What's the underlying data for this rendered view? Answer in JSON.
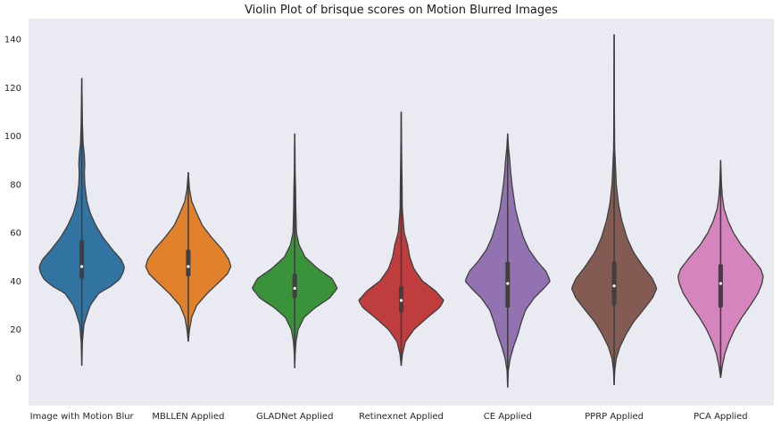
{
  "chart_data": {
    "type": "violin",
    "title": "Violin Plot of brisque scores on Motion Blurred Images",
    "xlabel": "",
    "ylabel": "",
    "ylim": [
      -11.5,
      148.5
    ],
    "yticks": [
      0,
      20,
      40,
      60,
      80,
      100,
      120,
      140
    ],
    "grid": false,
    "background": "#eaeaf2",
    "categories": [
      "Image with Motion Blur",
      "MBLLEN Applied",
      "GLADNet Applied",
      "Retinexnet Applied",
      "CE Applied",
      "PPRP Applied",
      "PCA Applied"
    ],
    "violins": [
      {
        "color": "#3274a1",
        "min": 5,
        "max": 124,
        "q1": 41,
        "median": 46,
        "q3": 57,
        "density": [
          [
            5,
            0
          ],
          [
            15,
            0.015
          ],
          [
            22,
            0.05
          ],
          [
            26,
            0.12
          ],
          [
            30,
            0.2
          ],
          [
            35,
            0.4
          ],
          [
            38,
            0.7
          ],
          [
            41,
            0.9
          ],
          [
            44,
            0.98
          ],
          [
            46,
            1.0
          ],
          [
            49,
            0.92
          ],
          [
            53,
            0.72
          ],
          [
            58,
            0.5
          ],
          [
            63,
            0.33
          ],
          [
            68,
            0.2
          ],
          [
            73,
            0.12
          ],
          [
            80,
            0.07
          ],
          [
            85,
            0.06
          ],
          [
            88,
            0.07
          ],
          [
            92,
            0.06
          ],
          [
            97,
            0.03
          ],
          [
            105,
            0.015
          ],
          [
            115,
            0.008
          ],
          [
            124,
            0
          ]
        ]
      },
      {
        "color": "#e1812c",
        "min": 15,
        "max": 85,
        "q1": 42,
        "median": 46,
        "q3": 53,
        "density": [
          [
            15,
            0
          ],
          [
            20,
            0.03
          ],
          [
            25,
            0.08
          ],
          [
            30,
            0.2
          ],
          [
            35,
            0.45
          ],
          [
            40,
            0.75
          ],
          [
            43,
            0.92
          ],
          [
            46,
            1.0
          ],
          [
            49,
            0.95
          ],
          [
            53,
            0.8
          ],
          [
            58,
            0.55
          ],
          [
            63,
            0.33
          ],
          [
            68,
            0.2
          ],
          [
            73,
            0.08
          ],
          [
            78,
            0.03
          ],
          [
            85,
            0
          ]
        ]
      },
      {
        "color": "#3a923a",
        "min": 4,
        "max": 101,
        "q1": 33,
        "median": 37,
        "q3": 43,
        "density": [
          [
            4,
            0
          ],
          [
            10,
            0.01
          ],
          [
            15,
            0.03
          ],
          [
            20,
            0.08
          ],
          [
            25,
            0.22
          ],
          [
            29,
            0.48
          ],
          [
            33,
            0.82
          ],
          [
            37,
            1.0
          ],
          [
            41,
            0.88
          ],
          [
            45,
            0.55
          ],
          [
            50,
            0.24
          ],
          [
            55,
            0.1
          ],
          [
            60,
            0.04
          ],
          [
            70,
            0.025
          ],
          [
            78,
            0.02
          ],
          [
            85,
            0.01
          ],
          [
            95,
            0.005
          ],
          [
            101,
            0
          ]
        ]
      },
      {
        "color": "#c03d3e",
        "min": 5,
        "max": 110,
        "q1": 27,
        "median": 32,
        "q3": 38,
        "density": [
          [
            5,
            0
          ],
          [
            10,
            0.03
          ],
          [
            15,
            0.1
          ],
          [
            20,
            0.3
          ],
          [
            25,
            0.62
          ],
          [
            29,
            0.9
          ],
          [
            32,
            1.0
          ],
          [
            36,
            0.8
          ],
          [
            40,
            0.5
          ],
          [
            45,
            0.3
          ],
          [
            50,
            0.2
          ],
          [
            55,
            0.15
          ],
          [
            60,
            0.07
          ],
          [
            70,
            0.025
          ],
          [
            80,
            0.02
          ],
          [
            90,
            0.012
          ],
          [
            100,
            0.006
          ],
          [
            110,
            0
          ]
        ]
      },
      {
        "color": "#9372b2",
        "min": -4,
        "max": 101,
        "q1": 29,
        "median": 39,
        "q3": 48,
        "density": [
          [
            -4,
            0
          ],
          [
            3,
            0.015
          ],
          [
            8,
            0.06
          ],
          [
            13,
            0.14
          ],
          [
            18,
            0.24
          ],
          [
            23,
            0.32
          ],
          [
            28,
            0.42
          ],
          [
            33,
            0.62
          ],
          [
            37,
            0.85
          ],
          [
            40,
            1.0
          ],
          [
            44,
            0.9
          ],
          [
            48,
            0.7
          ],
          [
            53,
            0.5
          ],
          [
            58,
            0.37
          ],
          [
            65,
            0.25
          ],
          [
            70,
            0.18
          ],
          [
            75,
            0.14
          ],
          [
            80,
            0.1
          ],
          [
            85,
            0.07
          ],
          [
            90,
            0.05
          ],
          [
            95,
            0.02
          ],
          [
            101,
            0
          ]
        ]
      },
      {
        "color": "#845b53",
        "min": -3,
        "max": 142,
        "q1": 30,
        "median": 38,
        "q3": 48,
        "density": [
          [
            -3,
            0
          ],
          [
            3,
            0.015
          ],
          [
            8,
            0.05
          ],
          [
            13,
            0.14
          ],
          [
            18,
            0.28
          ],
          [
            23,
            0.45
          ],
          [
            28,
            0.68
          ],
          [
            33,
            0.9
          ],
          [
            37,
            1.0
          ],
          [
            41,
            0.9
          ],
          [
            46,
            0.68
          ],
          [
            52,
            0.45
          ],
          [
            58,
            0.3
          ],
          [
            65,
            0.18
          ],
          [
            72,
            0.1
          ],
          [
            80,
            0.05
          ],
          [
            88,
            0.03
          ],
          [
            95,
            0.012
          ],
          [
            105,
            0.008
          ],
          [
            115,
            0.005
          ],
          [
            130,
            0.003
          ],
          [
            142,
            0
          ]
        ]
      },
      {
        "color": "#d684bd",
        "min": 0,
        "max": 90,
        "q1": 29,
        "median": 39,
        "q3": 47,
        "density": [
          [
            0,
            0
          ],
          [
            5,
            0.04
          ],
          [
            10,
            0.1
          ],
          [
            15,
            0.2
          ],
          [
            20,
            0.33
          ],
          [
            25,
            0.5
          ],
          [
            30,
            0.7
          ],
          [
            35,
            0.88
          ],
          [
            39,
            0.97
          ],
          [
            42,
            1.0
          ],
          [
            45,
            0.94
          ],
          [
            50,
            0.72
          ],
          [
            55,
            0.48
          ],
          [
            60,
            0.3
          ],
          [
            65,
            0.17
          ],
          [
            70,
            0.08
          ],
          [
            75,
            0.04
          ],
          [
            80,
            0.02
          ],
          [
            85,
            0.01
          ],
          [
            90,
            0
          ]
        ]
      }
    ]
  }
}
